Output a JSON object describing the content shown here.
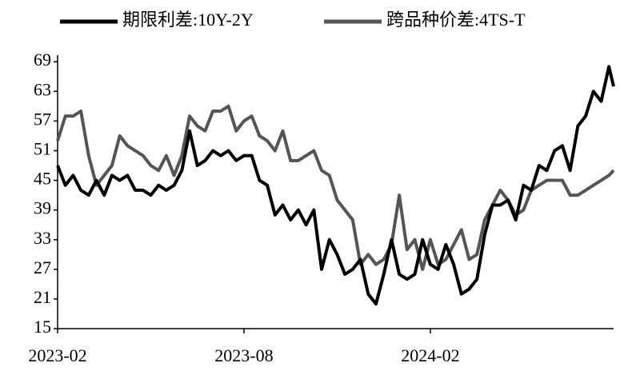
{
  "chart_data": {
    "type": "line",
    "x": [
      0,
      0.25,
      0.5,
      0.75,
      1,
      1.25,
      1.5,
      1.75,
      2,
      2.25,
      2.5,
      2.75,
      3,
      3.25,
      3.5,
      3.75,
      4,
      4.25,
      4.5,
      4.75,
      5,
      5.25,
      5.5,
      5.75,
      6,
      6.25,
      6.5,
      6.75,
      7,
      7.25,
      7.5,
      7.75,
      8,
      8.25,
      8.5,
      8.75,
      9,
      9.25,
      9.5,
      9.75,
      10,
      10.25,
      10.5,
      10.75,
      11,
      11.25,
      11.5,
      11.75,
      12,
      12.25,
      12.5,
      12.75,
      13,
      13.25,
      13.5,
      13.75,
      14,
      14.25,
      14.5,
      14.75,
      15,
      15.25,
      15.5,
      15.75,
      16,
      16.25,
      16.5,
      16.75,
      17,
      17.25,
      17.5,
      17.75,
      17.9
    ],
    "series": [
      {
        "name": "期限利差:10Y-2Y",
        "color": "#000000",
        "values": [
          48,
          44,
          46,
          43,
          42,
          45,
          42,
          46,
          45,
          46,
          43,
          43,
          42,
          44,
          43,
          44,
          47,
          55,
          48,
          49,
          51,
          50,
          51,
          49,
          50,
          50,
          45,
          44,
          38,
          40,
          37,
          39,
          36,
          39,
          27,
          33,
          30,
          26,
          27,
          29,
          22,
          20,
          26,
          33,
          26,
          25,
          26,
          33,
          28,
          27,
          32,
          28,
          22,
          23,
          25,
          34,
          40,
          40,
          41,
          37,
          44,
          43,
          48,
          47,
          51,
          52,
          47,
          56,
          58,
          63,
          61,
          68,
          64
        ]
      },
      {
        "name": "跨品种价差:4TS-T",
        "color": "#555555",
        "values": [
          53,
          58,
          58,
          59,
          50,
          44,
          46,
          48,
          54,
          52,
          51,
          50,
          48,
          47,
          50,
          46,
          50,
          58,
          56,
          55,
          59,
          59,
          60,
          55,
          57,
          58,
          54,
          53,
          51,
          55,
          49,
          49,
          50,
          51,
          47,
          46,
          41,
          39,
          37,
          28,
          30,
          28,
          29,
          32,
          42,
          31,
          33,
          27,
          33,
          28,
          29,
          32,
          35,
          29,
          30,
          37,
          40,
          43,
          41,
          38,
          39,
          43,
          44,
          45,
          45,
          45,
          42,
          42,
          43,
          44,
          45,
          46,
          47
        ]
      }
    ],
    "xlim": [
      0,
      17.9
    ],
    "xticks": [
      {
        "value": 0,
        "label": "2023-02"
      },
      {
        "value": 6,
        "label": "2023-08"
      },
      {
        "value": 12,
        "label": "2024-02"
      }
    ],
    "ylim": [
      15,
      70
    ],
    "yticks": [
      15,
      21,
      27,
      33,
      39,
      45,
      51,
      57,
      63,
      69
    ],
    "grid": false,
    "legend": "top"
  }
}
